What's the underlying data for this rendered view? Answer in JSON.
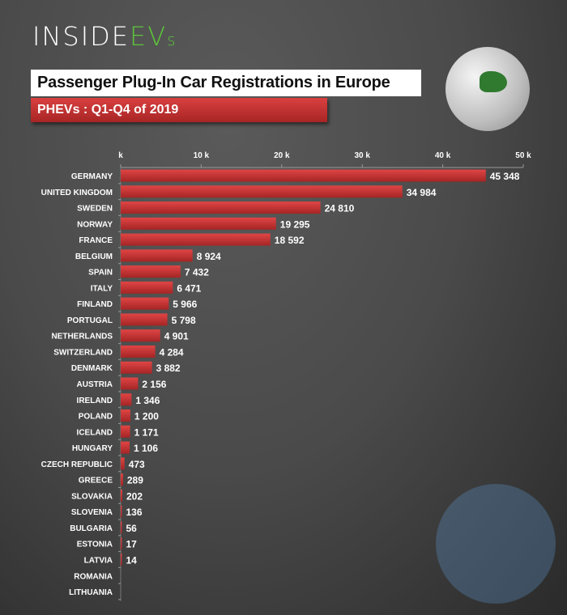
{
  "logo": {
    "text_a": "INSIDE",
    "text_b": "EV",
    "text_c": "s"
  },
  "colors": {
    "bar": "#c83232",
    "text": "#ffffff",
    "accent": "#5cc43a"
  },
  "chart_data": {
    "type": "bar",
    "orientation": "horizontal",
    "title": "Passenger Plug-In Car Registrations in Europe",
    "subtitle": "PHEVs : Q1-Q4 of 2019",
    "xlim": [
      0,
      50000
    ],
    "xticks": [
      0,
      10000,
      20000,
      30000,
      40000,
      50000
    ],
    "xtick_labels": [
      "k",
      "10 k",
      "20 k",
      "30 k",
      "40 k",
      "50 k"
    ],
    "categories": [
      "GERMANY",
      "UNITED KINGDOM",
      "SWEDEN",
      "NORWAY",
      "FRANCE",
      "BELGIUM",
      "SPAIN",
      "ITALY",
      "FINLAND",
      "PORTUGAL",
      "NETHERLANDS",
      "SWITZERLAND",
      "DENMARK",
      "AUSTRIA",
      "IRELAND",
      "POLAND",
      "ICELAND",
      "HUNGARY",
      "CZECH REPUBLIC",
      "GREECE",
      "SLOVAKIA",
      "SLOVENIA",
      "BULGARIA",
      "ESTONIA",
      "LATVIA",
      "ROMANIA",
      "LITHUANIA"
    ],
    "values": [
      45348,
      34984,
      24810,
      19295,
      18592,
      8924,
      7432,
      6471,
      5966,
      5798,
      4901,
      4284,
      3882,
      2156,
      1346,
      1200,
      1171,
      1106,
      473,
      289,
      202,
      136,
      56,
      17,
      14,
      null,
      null
    ],
    "value_labels": [
      "45 348",
      "34 984",
      "24 810",
      "19 295",
      "18 592",
      "8 924",
      "7 432",
      "6 471",
      "5 966",
      "5 798",
      "4 901",
      "4 284",
      "3 882",
      "2 156",
      "1 346",
      "1 200",
      "1 171",
      "1 106",
      "473",
      "289",
      "202",
      "136",
      "56",
      "17",
      "14",
      "",
      ""
    ]
  }
}
